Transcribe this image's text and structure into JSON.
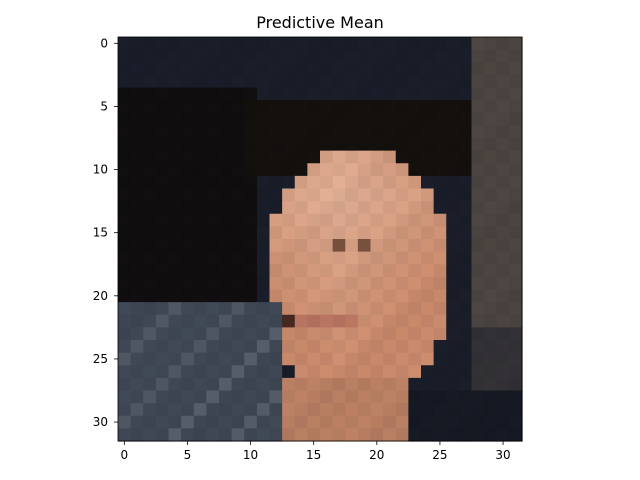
{
  "figure": {
    "title": "Predictive Mean",
    "x_ticks": [
      "0",
      "5",
      "10",
      "15",
      "20",
      "25",
      "30"
    ],
    "y_ticks": [
      "0",
      "5",
      "10",
      "15",
      "20",
      "25",
      "30"
    ]
  },
  "image": {
    "rows": 32,
    "cols": 32,
    "description_colors": {
      "background_top": "#1a1e2a",
      "hair_dark": "#15120f",
      "skin_light": "#d9a087",
      "skin_mid": "#c2876b",
      "shirt_blue": "#3a4452",
      "wall_right": "#5a5048"
    }
  }
}
